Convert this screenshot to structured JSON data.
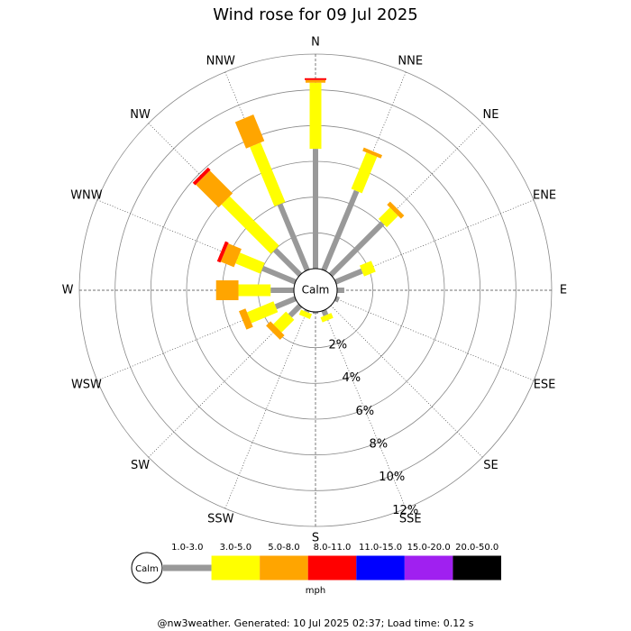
{
  "chart_data": {
    "type": "windrose",
    "title": "Wind rose for 09 Jul 2025",
    "directions": [
      "N",
      "NNE",
      "NE",
      "ENE",
      "E",
      "ESE",
      "SE",
      "SSE",
      "S",
      "SSW",
      "SW",
      "WSW",
      "W",
      "WNW",
      "NW",
      "NNW"
    ],
    "series": [
      {
        "name": "1.0-3.0",
        "color": "#999999",
        "values": [
          6.7,
          4.8,
          4.1,
          1.6,
          0.4,
          0.2,
          0,
          0.3,
          0.1,
          0.1,
          0.8,
          1.2,
          1.3,
          2.0,
          2.0,
          4.0
        ]
      },
      {
        "name": "3.0-5.0",
        "color": "#ffff00",
        "values": [
          3.7,
          2.2,
          0.9,
          0.7,
          0,
          0,
          0,
          0.3,
          0,
          0.3,
          1.0,
          1.6,
          1.8,
          1.5,
          3.9,
          3.6
        ]
      },
      {
        "name": "5.0-8.0",
        "color": "#ffa500",
        "values": [
          0.15,
          0.2,
          0.25,
          0,
          0,
          0,
          0,
          0,
          0,
          0,
          0.35,
          0.4,
          1.25,
          0.8,
          1.8,
          1.6
        ]
      },
      {
        "name": "8.0-11.0",
        "color": "#ff0000",
        "values": [
          0.1,
          0,
          0,
          0,
          0,
          0,
          0,
          0,
          0,
          0,
          0,
          0,
          0,
          0.2,
          0.2,
          0
        ]
      },
      {
        "name": "11.0-15.0",
        "color": "#0000ff",
        "values": [
          0,
          0,
          0,
          0,
          0,
          0,
          0,
          0,
          0,
          0,
          0,
          0,
          0,
          0,
          0,
          0
        ]
      },
      {
        "name": "15.0-20.0",
        "color": "#a020f0",
        "values": [
          0,
          0,
          0,
          0,
          0,
          0,
          0,
          0,
          0,
          0,
          0,
          0,
          0,
          0,
          0,
          0
        ]
      },
      {
        "name": "20.0-50.0",
        "color": "#000000",
        "values": [
          0,
          0,
          0,
          0,
          0,
          0,
          0,
          0,
          0,
          0,
          0,
          0,
          0,
          0,
          0,
          0
        ]
      }
    ],
    "rlim": [
      0,
      12
    ],
    "rticks": [
      {
        "value": 2,
        "label": "2%"
      },
      {
        "value": 4,
        "label": "4%"
      },
      {
        "value": 6,
        "label": "6%"
      },
      {
        "value": 8,
        "label": "8%"
      },
      {
        "value": 10,
        "label": "10%"
      },
      {
        "value": 12,
        "label": "12%"
      }
    ],
    "calm_label": "Calm",
    "unit": "mph",
    "footer": "@nw3weather. Generated: 10 Jul 2025 02:37; Load time: 0.12 s"
  }
}
